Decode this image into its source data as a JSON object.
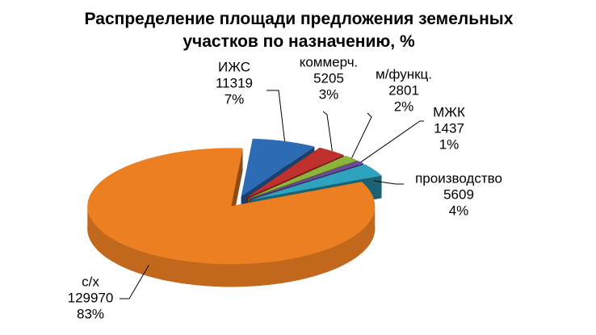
{
  "chart_data": {
    "type": "pie3d",
    "title": "Распределение площади предложения земельных участков по назначению, %",
    "categories": [
      "ИЖС",
      "коммерч.",
      "м/функц.",
      "МЖК",
      "производство",
      "с/х"
    ],
    "values": [
      11319,
      5205,
      2801,
      1437,
      5609,
      129970
    ],
    "percent_labels": [
      "7%",
      "3%",
      "2%",
      "1%",
      "4%",
      "83%"
    ],
    "colors": [
      "#2e6bb5",
      "#c0302c",
      "#8cb33a",
      "#6a4a9c",
      "#2ea3c0",
      "#ec7f22"
    ]
  }
}
